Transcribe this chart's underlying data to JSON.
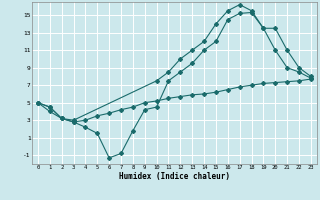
{
  "xlabel": "Humidex (Indice chaleur)",
  "bg_color": "#cce8ec",
  "grid_color": "#ffffff",
  "line_color": "#1a6b6b",
  "xlim": [
    -0.5,
    23.5
  ],
  "ylim": [
    -2,
    16.5
  ],
  "xticks": [
    0,
    1,
    2,
    3,
    4,
    5,
    6,
    7,
    8,
    9,
    10,
    11,
    12,
    13,
    14,
    15,
    16,
    17,
    18,
    19,
    20,
    21,
    22,
    23
  ],
  "yticks": [
    -1,
    1,
    3,
    5,
    7,
    9,
    11,
    13,
    15
  ],
  "line1_x": [
    0,
    1,
    2,
    3,
    10,
    11,
    12,
    13,
    14,
    15,
    16,
    17,
    18,
    19,
    20,
    21,
    22,
    23
  ],
  "line1_y": [
    5,
    4,
    3.2,
    3.0,
    7.5,
    8.5,
    10.0,
    11.0,
    12.0,
    14.0,
    15.5,
    16.2,
    15.5,
    13.5,
    11.0,
    9.0,
    8.5,
    7.8
  ],
  "line2_x": [
    0,
    1,
    2,
    3,
    4,
    5,
    6,
    7,
    8,
    9,
    10,
    11,
    12,
    13,
    14,
    15,
    16,
    17,
    18,
    19,
    20,
    21,
    22,
    23
  ],
  "line2_y": [
    5,
    4.5,
    3.2,
    2.8,
    2.2,
    1.5,
    -1.3,
    -0.8,
    1.8,
    4.2,
    4.5,
    7.5,
    8.5,
    9.5,
    11.0,
    12.0,
    14.5,
    15.2,
    15.3,
    13.5,
    13.5,
    11.0,
    9.0,
    8.0
  ],
  "line3_x": [
    0,
    1,
    2,
    3,
    4,
    5,
    6,
    7,
    8,
    9,
    10,
    11,
    12,
    13,
    14,
    15,
    16,
    17,
    18,
    19,
    20,
    21,
    22,
    23
  ],
  "line3_y": [
    5,
    4.5,
    3.2,
    2.8,
    3.0,
    3.5,
    3.8,
    4.2,
    4.5,
    5.0,
    5.2,
    5.5,
    5.7,
    5.9,
    6.0,
    6.2,
    6.5,
    6.8,
    7.0,
    7.2,
    7.3,
    7.4,
    7.5,
    7.7
  ]
}
